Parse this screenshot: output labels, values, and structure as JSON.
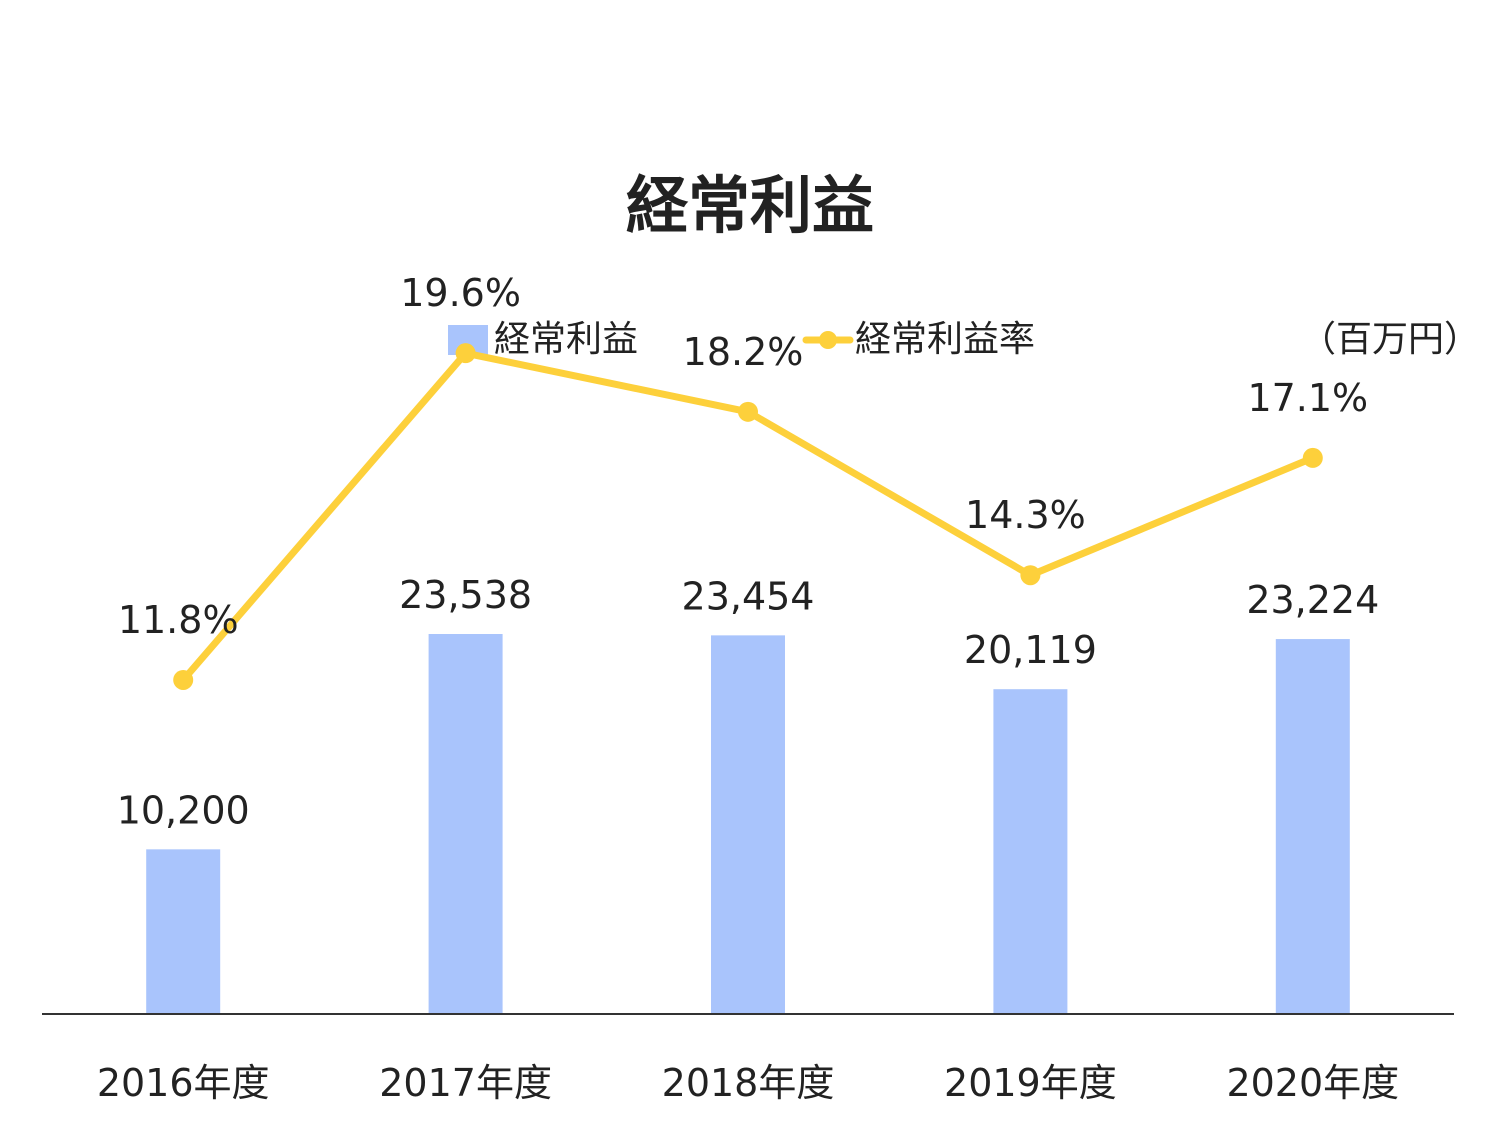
{
  "chart_data": {
    "type": "bar",
    "title": "経常利益",
    "unit": "（百万円）",
    "categories": [
      "2016年度",
      "2017年度",
      "2018年度",
      "2019年度",
      "2020年度"
    ],
    "series": [
      {
        "name": "経常利益",
        "type": "bar",
        "color": "#a9c4fc",
        "values": [
          10200,
          23538,
          23454,
          20119,
          23224
        ],
        "labels": [
          "10,200",
          "23,538",
          "23,454",
          "20,119",
          "23,224"
        ]
      },
      {
        "name": "経常利益率",
        "type": "line",
        "color": "#fdd03b",
        "values": [
          11.8,
          19.6,
          18.2,
          14.3,
          17.1
        ],
        "labels": [
          "11.8%",
          "19.6%",
          "18.2%",
          "14.3%",
          "17.1%"
        ]
      }
    ],
    "legend_position": "top",
    "grid": false
  }
}
